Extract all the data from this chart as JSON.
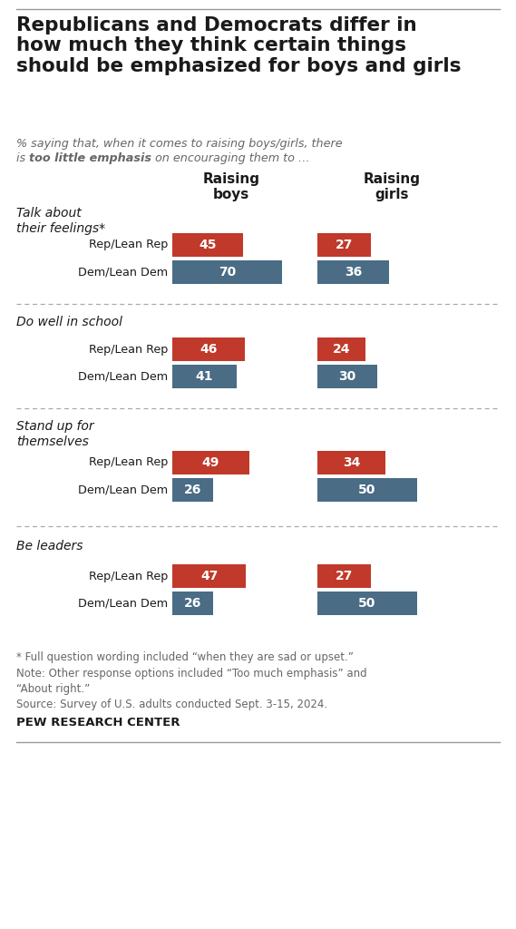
{
  "title": "Republicans and Democrats differ in\nhow much they think certain things\nshould be emphasized for boys and girls",
  "subtitle_line1": "% saying that, when it comes to raising boys/girls, there",
  "subtitle_line2_pre": "is ",
  "subtitle_line2_bold": "too little emphasis",
  "subtitle_line2_post": " on encouraging them to …",
  "col_header_left": "Raising\nboys",
  "col_header_right": "Raising\ngirls",
  "categories": [
    "Talk about\ntheir feelings*",
    "Do well in school",
    "Stand up for\nthemselves",
    "Be leaders"
  ],
  "rep_color": "#c0392b",
  "dem_color": "#4a6c85",
  "rep_label": "Rep/Lean Rep",
  "dem_label": "Dem/Lean Dem",
  "data": [
    {
      "boys_rep": 45,
      "boys_dem": 70,
      "girls_rep": 27,
      "girls_dem": 36
    },
    {
      "boys_rep": 46,
      "boys_dem": 41,
      "girls_rep": 24,
      "girls_dem": 30
    },
    {
      "boys_rep": 49,
      "boys_dem": 26,
      "girls_rep": 34,
      "girls_dem": 50
    },
    {
      "boys_rep": 47,
      "boys_dem": 26,
      "girls_rep": 27,
      "girls_dem": 50
    }
  ],
  "footnote1": "* Full question wording included “when they are sad or upset.”",
  "footnote2": "Note: Other response options included “Too much emphasis” and\n“About right.”",
  "footnote3": "Source: Survey of U.S. adults conducted Sept. 3-15, 2024.",
  "source_label": "PEW RESEARCH CENTER",
  "bar_max": 75
}
